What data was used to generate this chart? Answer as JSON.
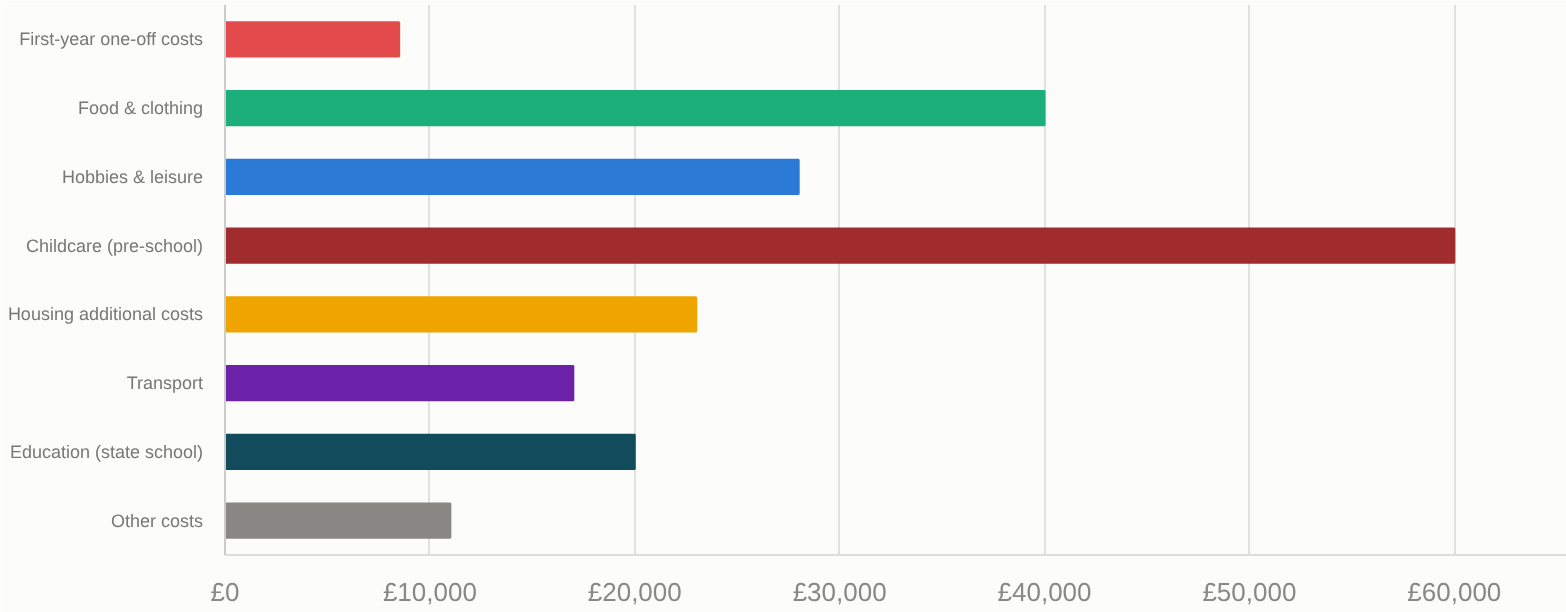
{
  "chart_data": {
    "type": "bar",
    "orientation": "horizontal",
    "categories": [
      "First-year one-off costs",
      "Food & clothing",
      "Hobbies & leisure",
      "Childcare (pre-school)",
      "Housing additional costs",
      "Transport",
      "Education (state school)",
      "Other costs"
    ],
    "values": [
      8500,
      40000,
      28000,
      60000,
      23000,
      17000,
      20000,
      11000
    ],
    "colors": [
      "#e34a4b",
      "#1caf7a",
      "#2a7ad6",
      "#a12c2e",
      "#efa400",
      "#6b22a8",
      "#124b5c",
      "#888783"
    ],
    "xlim": [
      0,
      65500
    ],
    "xticks": [
      {
        "value": 0,
        "label": "£0"
      },
      {
        "value": 10000,
        "label": "£10,000"
      },
      {
        "value": 20000,
        "label": "£20,000"
      },
      {
        "value": 30000,
        "label": "£30,000"
      },
      {
        "value": 40000,
        "label": "£40,000"
      },
      {
        "value": 50000,
        "label": "£50,000"
      },
      {
        "value": 60000,
        "label": "£60,000"
      }
    ],
    "grid": "x"
  }
}
